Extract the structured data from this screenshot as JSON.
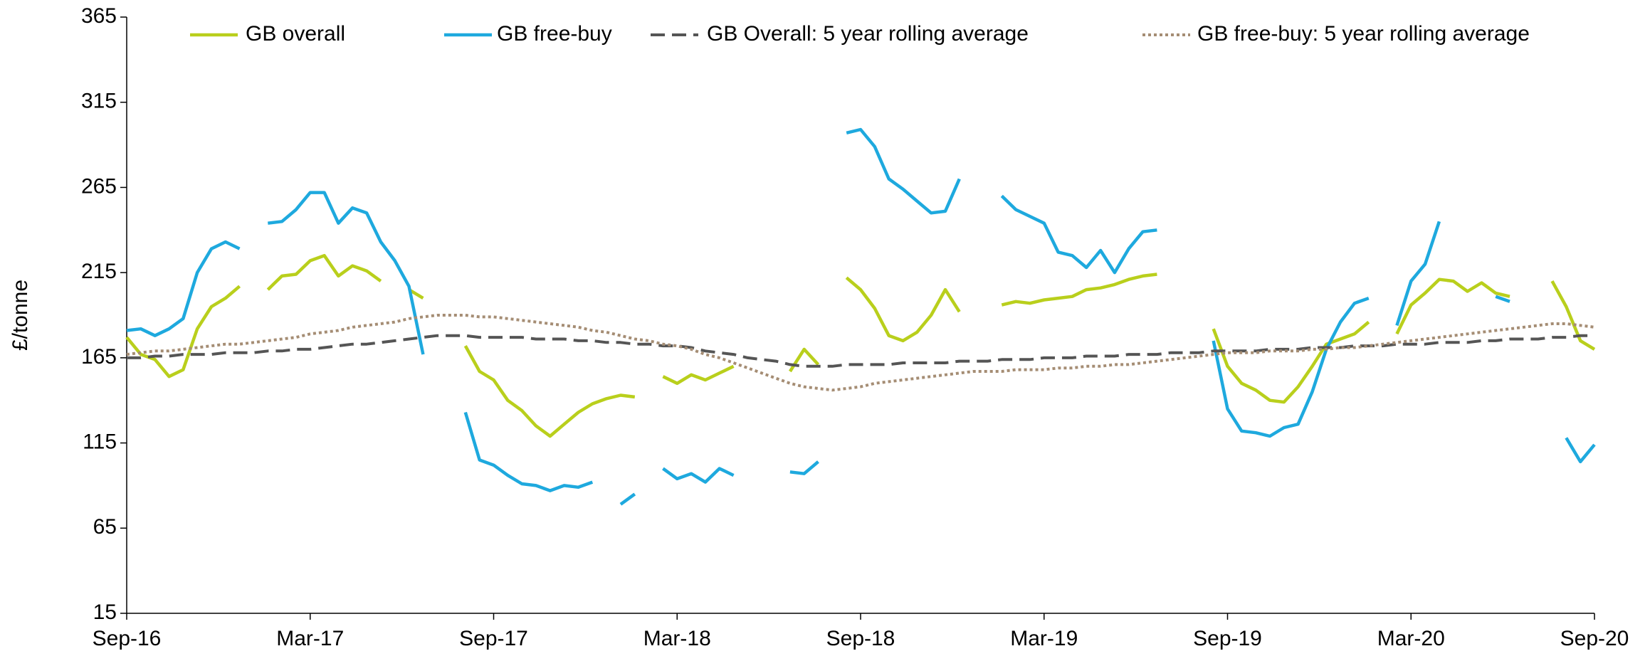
{
  "chart_data": {
    "type": "line",
    "y_label": "£/tonne",
    "categories": [
      "Sep-16",
      null,
      null,
      null,
      null,
      null,
      null,
      null,
      null,
      null,
      null,
      null,
      null,
      "Mar-17",
      null,
      null,
      null,
      null,
      null,
      null,
      null,
      null,
      null,
      null,
      null,
      null,
      "Sep-17",
      null,
      null,
      null,
      null,
      null,
      null,
      null,
      null,
      null,
      null,
      null,
      null,
      "Mar-18",
      null,
      null,
      null,
      null,
      null,
      null,
      null,
      null,
      null,
      null,
      null,
      null,
      "Sep-18",
      null,
      null,
      null,
      null,
      null,
      null,
      null,
      null,
      null,
      null,
      null,
      null,
      "Mar-19",
      null,
      null,
      null,
      null,
      null,
      null,
      null,
      null,
      null,
      null,
      null,
      null,
      "Sep-19",
      null,
      null,
      null,
      null,
      null,
      null,
      null,
      null,
      null,
      null,
      null,
      null,
      "Mar-20",
      null,
      null,
      null,
      null,
      null,
      null,
      null,
      null,
      null,
      null,
      null,
      null,
      "Sep-20"
    ],
    "series": [
      {
        "name": "GB overall",
        "color": "#b9cf1c",
        "dash": "solid",
        "values": [
          177,
          167,
          164,
          154,
          158,
          182,
          195,
          200,
          207,
          null,
          205,
          213,
          214,
          222,
          225,
          213,
          219,
          216,
          210,
          null,
          205,
          200,
          null,
          null,
          172,
          157,
          152,
          140,
          134,
          125,
          119,
          126,
          133,
          138,
          141,
          143,
          142,
          null,
          154,
          150,
          155,
          152,
          156,
          160,
          null,
          null,
          null,
          157,
          170,
          161,
          null,
          212,
          205,
          194,
          178,
          175,
          180,
          190,
          205,
          192,
          null,
          null,
          196,
          198,
          197,
          199,
          200,
          201,
          205,
          206,
          208,
          211,
          213,
          214,
          null,
          null,
          null,
          182,
          160,
          150,
          146,
          140,
          139,
          148,
          160,
          173,
          176,
          179,
          186,
          null,
          179,
          196,
          203,
          211,
          210,
          204,
          209,
          203,
          201,
          null,
          null,
          210,
          195,
          175,
          170
        ]
      },
      {
        "name": "GB free-buy",
        "color": "#1ea9de",
        "dash": "solid",
        "values": [
          181,
          182,
          178,
          182,
          188,
          215,
          229,
          233,
          229,
          null,
          244,
          245,
          252,
          262,
          262,
          244,
          253,
          250,
          233,
          222,
          207,
          167,
          null,
          null,
          133,
          105,
          102,
          96,
          91,
          90,
          87,
          90,
          89,
          92,
          null,
          79,
          85,
          null,
          100,
          94,
          97,
          92,
          100,
          96,
          null,
          null,
          null,
          98,
          97,
          104,
          null,
          297,
          299,
          289,
          270,
          264,
          257,
          250,
          251,
          270,
          null,
          null,
          260,
          252,
          248,
          244,
          227,
          225,
          218,
          228,
          215,
          229,
          239,
          240,
          null,
          null,
          null,
          175,
          135,
          122,
          121,
          119,
          124,
          126,
          145,
          170,
          186,
          197,
          200,
          null,
          184,
          210,
          220,
          245,
          null,
          null,
          null,
          201,
          198,
          null,
          null,
          null,
          118,
          104,
          114
        ]
      },
      {
        "name": "GB Overall: 5 year rolling average",
        "color": "#555555",
        "dash": "dashed",
        "values": [
          165,
          165,
          166,
          166,
          167,
          167,
          167,
          168,
          168,
          168,
          169,
          169,
          170,
          170,
          171,
          172,
          173,
          173,
          174,
          175,
          176,
          177,
          178,
          178,
          178,
          177,
          177,
          177,
          177,
          176,
          176,
          176,
          175,
          175,
          174,
          174,
          173,
          173,
          172,
          172,
          171,
          169,
          168,
          167,
          165,
          164,
          163,
          161,
          160,
          160,
          160,
          161,
          161,
          161,
          161,
          162,
          162,
          162,
          162,
          163,
          163,
          163,
          164,
          164,
          164,
          165,
          165,
          165,
          166,
          166,
          166,
          167,
          167,
          167,
          168,
          168,
          168,
          169,
          169,
          169,
          169,
          170,
          170,
          170,
          171,
          171,
          171,
          172,
          172,
          172,
          173,
          173,
          173,
          174,
          174,
          174,
          175,
          175,
          176,
          176,
          176,
          177,
          177,
          178,
          178
        ]
      },
      {
        "name": "GB free-buy: 5 year rolling average",
        "color": "#a58d74",
        "dash": "dotted",
        "values": [
          167,
          168,
          169,
          169,
          170,
          171,
          172,
          173,
          173,
          174,
          175,
          176,
          177,
          179,
          180,
          181,
          183,
          184,
          185,
          186,
          188,
          189,
          190,
          190,
          190,
          189,
          189,
          188,
          187,
          186,
          185,
          184,
          183,
          181,
          180,
          178,
          176,
          175,
          173,
          172,
          170,
          167,
          165,
          162,
          159,
          156,
          153,
          150,
          148,
          147,
          146,
          147,
          148,
          150,
          151,
          152,
          153,
          154,
          155,
          156,
          157,
          157,
          157,
          158,
          158,
          158,
          159,
          159,
          160,
          160,
          161,
          161,
          162,
          163,
          164,
          165,
          166,
          167,
          168,
          168,
          168,
          169,
          169,
          169,
          170,
          170,
          171,
          171,
          172,
          173,
          174,
          175,
          176,
          177,
          178,
          179,
          180,
          181,
          182,
          183,
          184,
          185,
          185,
          184,
          183
        ]
      }
    ],
    "ylim": [
      15,
      365
    ],
    "yticks": [
      15,
      65,
      115,
      165,
      215,
      265,
      315,
      365
    ],
    "grid": false,
    "legend": "top"
  }
}
